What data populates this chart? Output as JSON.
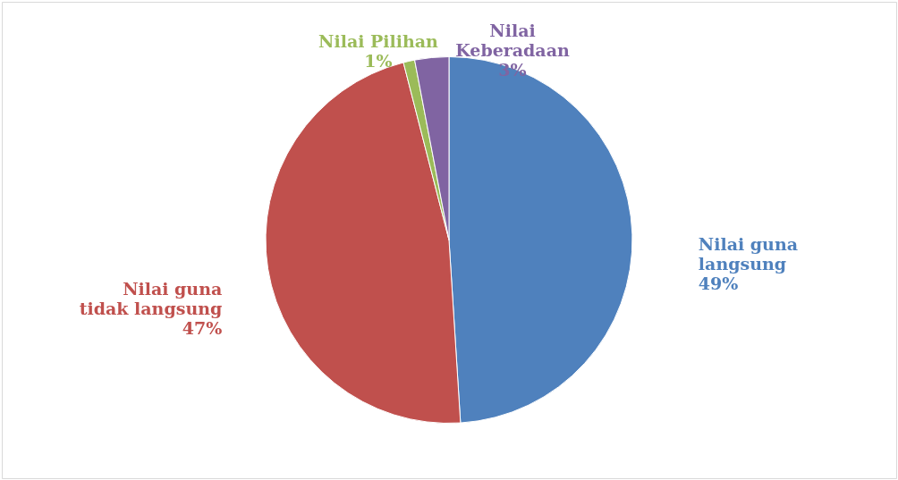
{
  "chart_data": {
    "type": "pie",
    "categories": [
      "Nilai guna\nlangsung",
      "Nilai guna\ntidak langsung",
      "Nilai Pilihan",
      "Nilai\nKeberadaan"
    ],
    "values": [
      49,
      47,
      1,
      3
    ],
    "colors": [
      "#4f81bd",
      "#c0504d",
      "#9bbb59",
      "#8064a2"
    ],
    "value_labels": [
      "49%",
      "47%",
      "1%",
      "3%"
    ]
  }
}
